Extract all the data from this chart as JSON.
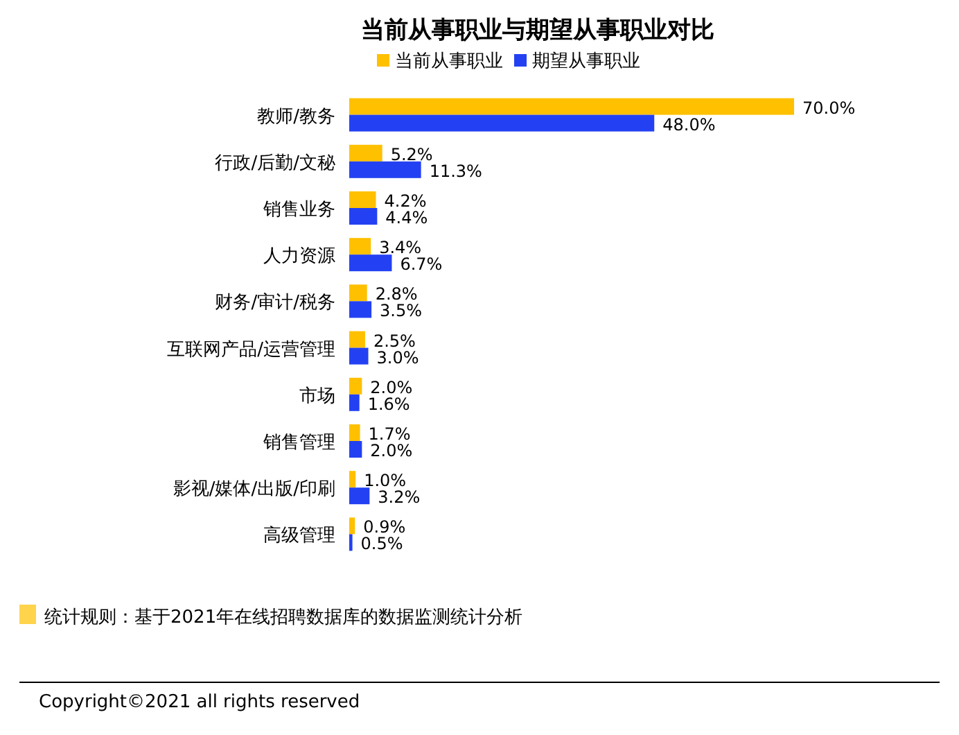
{
  "chart_data": {
    "type": "bar",
    "orientation": "horizontal",
    "title": "当前从事职业与期望从事职业对比",
    "legend": "top",
    "categories": [
      "教师/教务",
      "行政/后勤/文秘",
      "销售业务",
      "人力资源",
      "财务/审计/税务",
      "互联网产品/运营管理",
      "市场",
      "销售管理",
      "影视/媒体/出版/印刷",
      "高级管理"
    ],
    "series": [
      {
        "name": "当前从事职业",
        "color": "#ffc000",
        "values": [
          70.0,
          5.2,
          4.2,
          3.4,
          2.8,
          2.5,
          2.0,
          1.7,
          1.0,
          0.9
        ],
        "value_labels": [
          "70.0%",
          "5.2%",
          "4.2%",
          "3.4%",
          "2.8%",
          "2.5%",
          "2.0%",
          "1.7%",
          "1.0%",
          "0.9%"
        ]
      },
      {
        "name": "期望从事职业",
        "color": "#2341f2",
        "values": [
          48.0,
          11.3,
          4.4,
          6.7,
          3.5,
          3.0,
          1.6,
          2.0,
          3.2,
          0.5
        ],
        "value_labels": [
          "48.0%",
          "11.3%",
          "4.4%",
          "6.7%",
          "3.5%",
          "3.0%",
          "1.6%",
          "2.0%",
          "3.2%",
          "0.5%"
        ]
      }
    ],
    "annotations": [
      "统计规则：基于2021年在线招聘数据库的数据监测统计分析",
      "Copyright©2021 all rights reserved"
    ]
  }
}
